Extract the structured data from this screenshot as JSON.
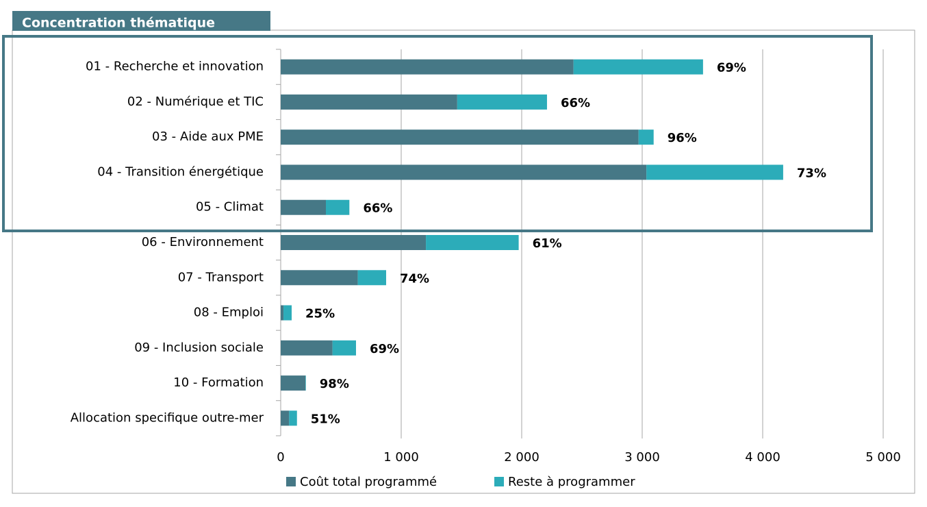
{
  "chart_data": {
    "type": "stacked_barh",
    "title": "Concentration thématique",
    "categories": [
      "01 - Recherche et innovation",
      "02 - Numérique et TIC",
      "03 - Aide aux PME",
      "04 - Transition énergétique",
      "05 - Climat",
      "06 - Environnement",
      "07 - Transport",
      "08 - Emploi",
      "09 - Inclusion sociale",
      "10 - Formation",
      "Allocation specifique outre-mer"
    ],
    "series": [
      {
        "name": "Coût total programmé",
        "color": "#467886",
        "values": [
          2430,
          1465,
          2970,
          3035,
          375,
          1205,
          640,
          23,
          430,
          205,
          70
        ]
      },
      {
        "name": "Reste à programmer",
        "color": "#2cacb9",
        "values": [
          1075,
          745,
          125,
          1135,
          195,
          770,
          235,
          68,
          195,
          4,
          65
        ]
      }
    ],
    "annotations": [
      "69%",
      "66%",
      "96%",
      "73%",
      "66%",
      "61%",
      "74%",
      "25%",
      "69%",
      "98%",
      "51%"
    ],
    "xlim": [
      0,
      5000
    ],
    "xticks": [
      0,
      {
        "value": 1000,
        "label": "1 000"
      },
      {
        "value": 2000,
        "label": "2 000"
      },
      {
        "value": 3000,
        "label": "3 000"
      },
      {
        "value": 4000,
        "label": "4 000"
      },
      {
        "value": 5000,
        "label": "5 000"
      }
    ],
    "grid": true,
    "legend": "bottom"
  }
}
